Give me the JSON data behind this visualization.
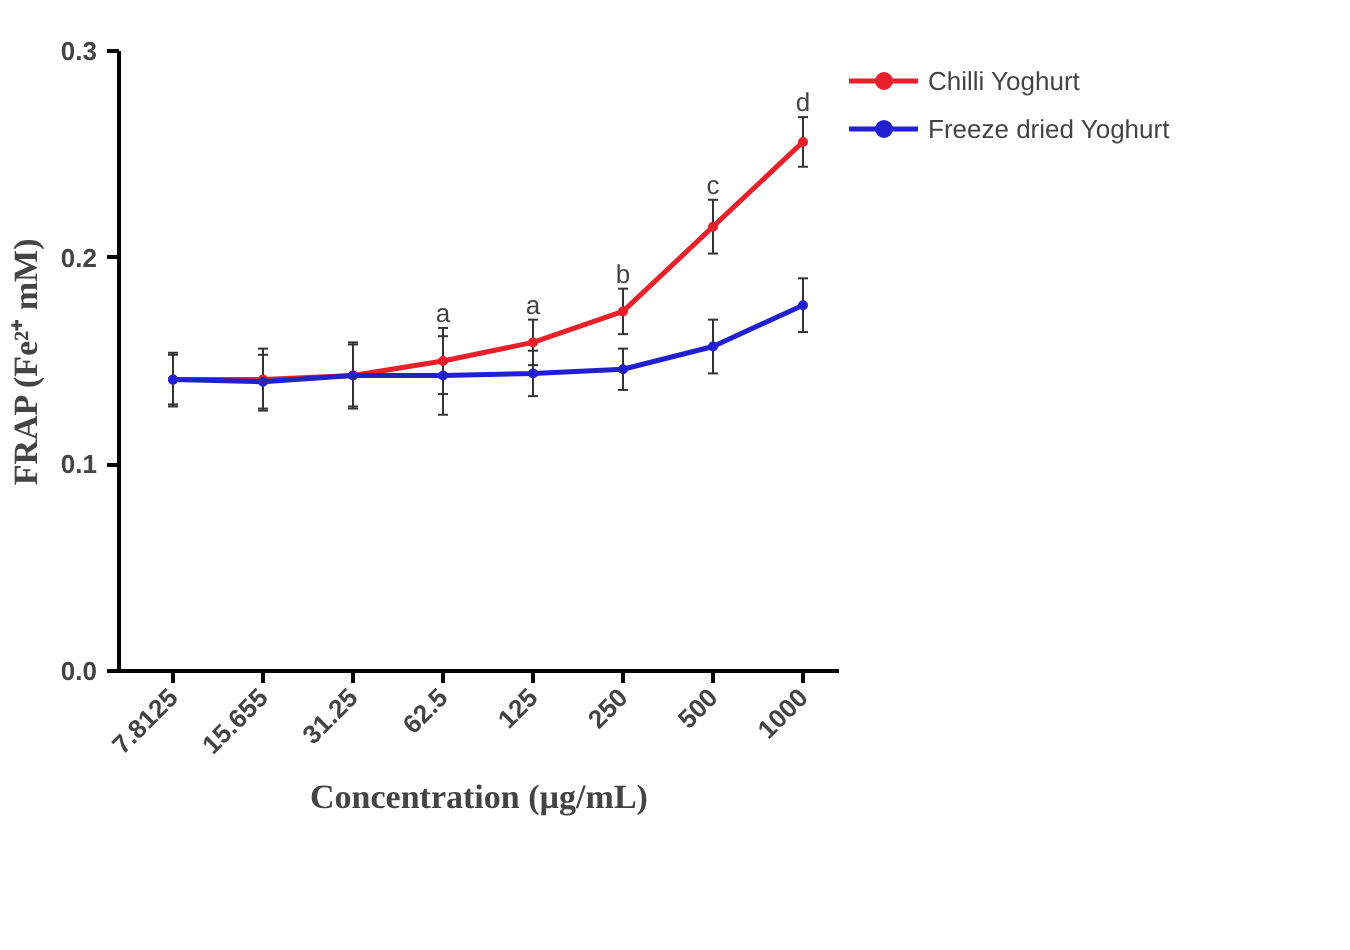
{
  "chart_data": {
    "type": "line",
    "xlabel": "Concentration (µg/mL)",
    "ylabel": "FRAP (Fe²⁺ mM)",
    "categories": [
      "7.8125",
      "15.655",
      "31.25",
      "62.5",
      "125",
      "250",
      "500",
      "1000"
    ],
    "series": [
      {
        "name": "Chilli Yoghurt",
        "color": "#e8202a",
        "values": [
          0.141,
          0.141,
          0.143,
          0.15,
          0.159,
          0.174,
          0.215,
          0.256
        ],
        "errors": [
          0.013,
          0.015,
          0.016,
          0.016,
          0.011,
          0.011,
          0.013,
          0.012
        ]
      },
      {
        "name": "Freeze dried Yoghurt",
        "color": "#2020d0",
        "values": [
          0.141,
          0.14,
          0.143,
          0.143,
          0.144,
          0.146,
          0.157,
          0.177
        ],
        "errors": [
          0.012,
          0.013,
          0.015,
          0.019,
          0.011,
          0.01,
          0.013,
          0.013
        ]
      }
    ],
    "ylim": [
      0,
      0.3
    ],
    "yticks": [
      {
        "value": 0,
        "label": "0.0"
      },
      0.1,
      0.2,
      0.3
    ],
    "annotations": [
      {
        "text": "a",
        "x": "62.5",
        "y": 0.166
      },
      {
        "text": "a",
        "x": "125",
        "y": 0.17
      },
      {
        "text": "b",
        "x": "250",
        "y": 0.185
      },
      {
        "text": "c",
        "x": "500",
        "y": 0.228
      },
      {
        "text": "d",
        "x": "1000",
        "y": 0.268
      }
    ],
    "marker": "circle",
    "line_style": "solid",
    "legend": "right",
    "grid": false
  }
}
